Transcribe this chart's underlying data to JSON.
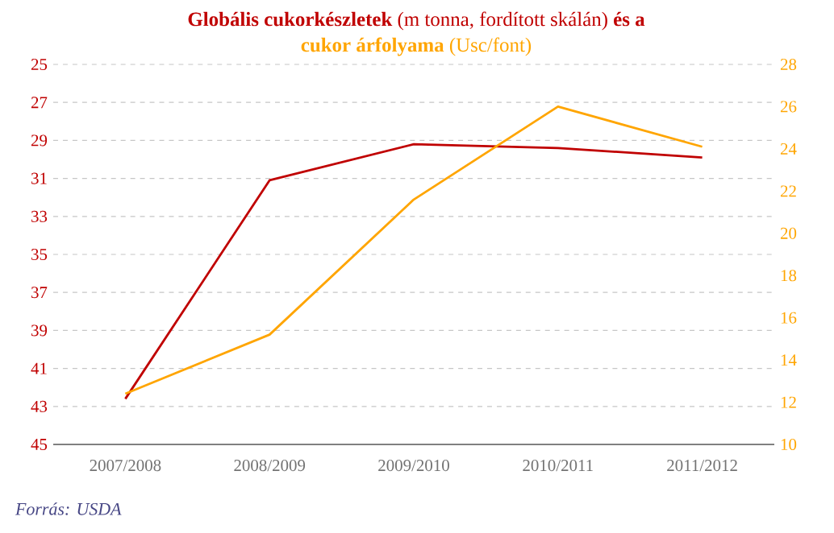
{
  "chart_data": {
    "type": "line",
    "title": "**Globális cukorkészletek** (m tonna, fordított skálán) **és a**",
    "subtitle": "**cukor árfolyama** (Usc/font)",
    "categories": [
      "2007/2008",
      "2008/2009",
      "2009/2010",
      "2010/2011",
      "2011/2012"
    ],
    "series": [
      {
        "color": "#c00000",
        "values": [
          42.6,
          31.1,
          29.2,
          29.4,
          29.9
        ]
      },
      {
        "color": "#ffa500",
        "axis": "y2",
        "values": [
          12.4,
          15.2,
          21.6,
          26.0,
          24.1
        ]
      }
    ],
    "ylim": [
      45,
      25
    ],
    "yticks": [
      25,
      27,
      29,
      31,
      33,
      35,
      37,
      39,
      41,
      43,
      45
    ],
    "y2lim": [
      10,
      28
    ],
    "y2ticks": [
      10,
      12,
      14,
      16,
      18,
      20,
      22,
      24,
      26,
      28
    ],
    "grid": "y",
    "marker": "none",
    "annotations": [
      "*Forrás: USDA*"
    ]
  }
}
